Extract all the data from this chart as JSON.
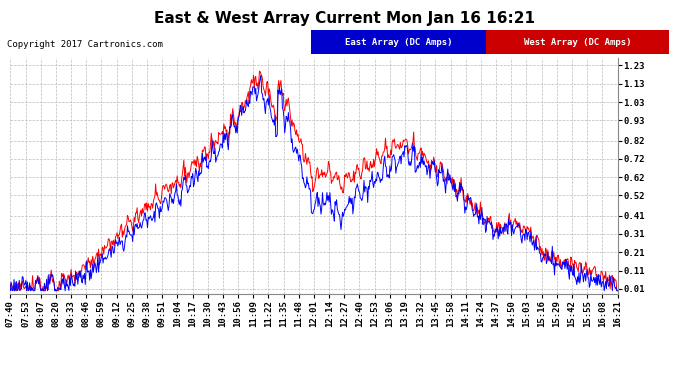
{
  "title": "East & West Array Current Mon Jan 16 16:21",
  "copyright": "Copyright 2017 Cartronics.com",
  "ylabel_right_ticks": [
    0.01,
    0.11,
    0.21,
    0.31,
    0.41,
    0.52,
    0.62,
    0.72,
    0.82,
    0.93,
    1.03,
    1.13,
    1.23
  ],
  "ymin": -0.02,
  "ymax": 1.27,
  "legend_east_label": "East Array (DC Amps)",
  "legend_west_label": "West Array (DC Amps)",
  "east_color": "#0000FF",
  "west_color": "#FF0000",
  "legend_east_bg": "#0000CC",
  "legend_west_bg": "#CC0000",
  "bg_color": "#FFFFFF",
  "grid_color": "#BBBBBB",
  "title_fontsize": 11,
  "tick_fontsize": 6.5,
  "x_tick_labels": [
    "07:40",
    "07:53",
    "08:07",
    "08:20",
    "08:33",
    "08:46",
    "08:59",
    "09:12",
    "09:25",
    "09:38",
    "09:51",
    "10:04",
    "10:17",
    "10:30",
    "10:43",
    "10:56",
    "11:09",
    "11:22",
    "11:35",
    "11:48",
    "12:01",
    "12:14",
    "12:27",
    "12:40",
    "12:53",
    "13:06",
    "13:19",
    "13:32",
    "13:45",
    "13:58",
    "14:11",
    "14:24",
    "14:37",
    "14:50",
    "15:03",
    "15:16",
    "15:29",
    "15:42",
    "15:55",
    "16:08",
    "16:21"
  ],
  "num_points": 820
}
